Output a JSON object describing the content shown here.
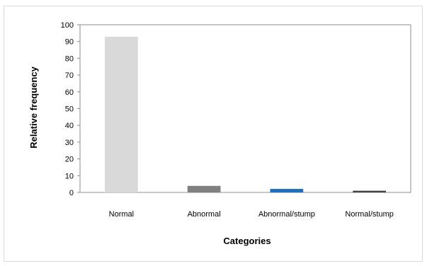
{
  "chart_data": {
    "type": "bar",
    "categories": [
      "Normal",
      "Abnormal",
      "Abnormal/stump",
      "Normal/stump"
    ],
    "values": [
      92.8,
      3.9,
      2.1,
      1.0
    ],
    "colors": [
      "#d9d9d9",
      "#808080",
      "#1f6fbf",
      "#404040"
    ],
    "xlabel": "Categories",
    "ylabel": "Relative frequency",
    "ylim": [
      0,
      100
    ],
    "yticks": [
      0,
      10,
      20,
      30,
      40,
      50,
      60,
      70,
      80,
      90,
      100
    ],
    "grid": false,
    "legend": "none"
  }
}
